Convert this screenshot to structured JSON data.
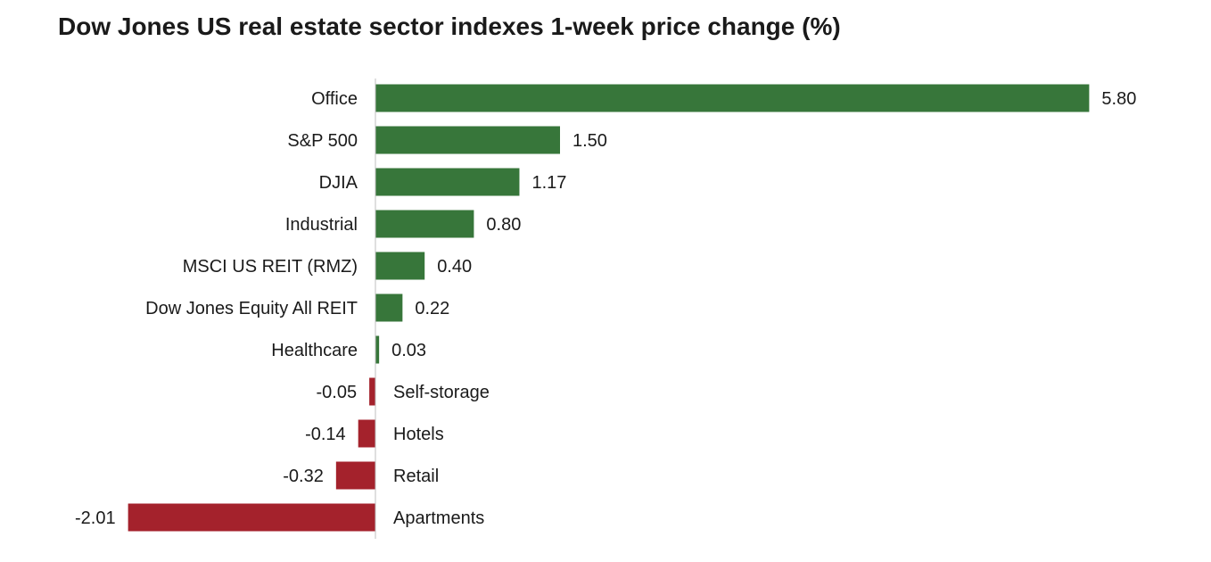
{
  "chart_data": {
    "type": "bar",
    "orientation": "horizontal",
    "title": "Dow Jones US real estate sector indexes 1-week price change (%)",
    "categories": [
      "Office",
      "S&P 500",
      "DJIA",
      "Industrial",
      "MSCI US REIT (RMZ)",
      "Dow Jones Equity All REIT",
      "Healthcare",
      "Self-storage",
      "Hotels",
      "Retail",
      "Apartments"
    ],
    "values": [
      5.8,
      1.5,
      1.17,
      0.8,
      0.4,
      0.22,
      0.03,
      -0.05,
      -0.14,
      -0.32,
      -2.01
    ],
    "value_labels": [
      "5.80",
      "1.50",
      "1.17",
      "0.80",
      "0.40",
      "0.22",
      "0.03",
      "-0.05",
      "-0.14",
      "-0.32",
      "-2.01"
    ],
    "xlim": [
      -2.01,
      5.8
    ],
    "grid": false,
    "legend": "none",
    "colors": {
      "positive": "#37763a",
      "negative": "#a4222c",
      "axis": "#bfbfbf"
    }
  }
}
